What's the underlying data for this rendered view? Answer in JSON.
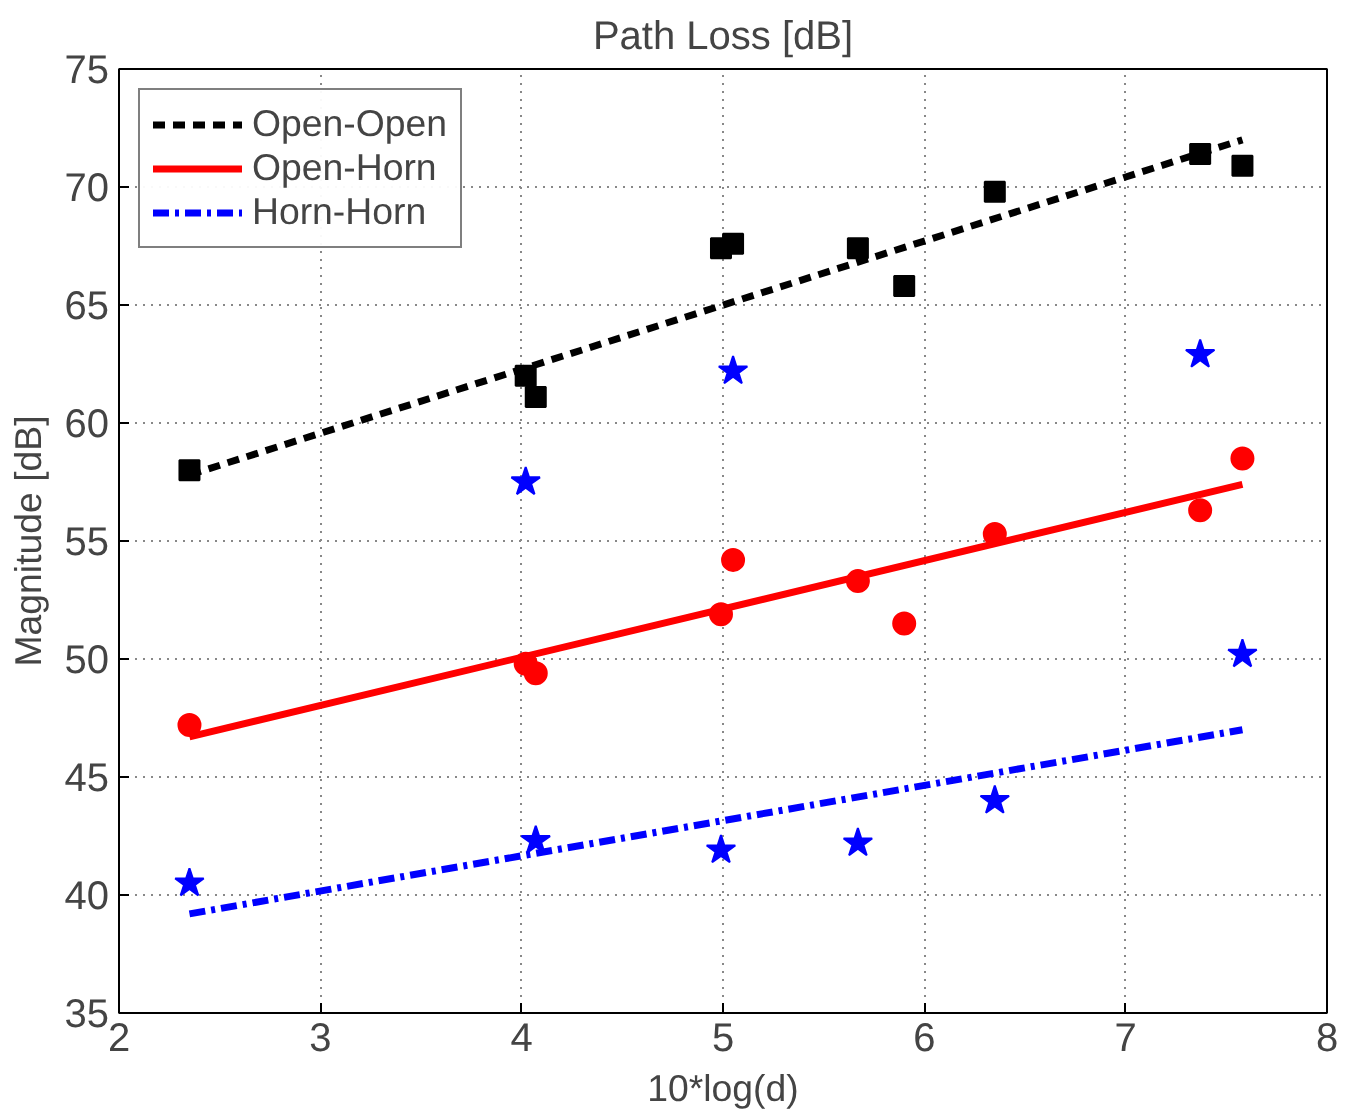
{
  "chart_data": {
    "type": "scatter",
    "title": "Path Loss [dB]",
    "xlabel": "10*log(d)",
    "ylabel": "Magnitude [dB]",
    "xlim": [
      2,
      8
    ],
    "ylim": [
      35,
      75
    ],
    "xticks": [
      2,
      3,
      4,
      5,
      6,
      7,
      8
    ],
    "yticks": [
      35,
      40,
      45,
      50,
      55,
      60,
      65,
      70,
      75
    ],
    "grid": true,
    "legend": "top left",
    "series": [
      {
        "type": "line",
        "name": "Open-Open",
        "color": "#000000",
        "line_style": "dashed",
        "marker": "none",
        "x": [
          2.35,
          7.58
        ],
        "values": [
          57.8,
          72.0
        ]
      },
      {
        "type": "line",
        "name": "Open-Horn",
        "color": "#ff0000",
        "line_style": "solid",
        "marker": "none",
        "x": [
          2.35,
          7.58
        ],
        "values": [
          46.7,
          57.4
        ]
      },
      {
        "type": "line",
        "name": "Horn-Horn",
        "color": "#0000ff",
        "line_style": "dashdot",
        "marker": "none",
        "x": [
          2.35,
          7.58
        ],
        "values": [
          39.2,
          47.0
        ]
      },
      {
        "color": "#000000",
        "marker": "square",
        "x": [
          2.35,
          4.02,
          4.07,
          4.99,
          5.05,
          5.67,
          5.9,
          6.35,
          7.37,
          7.58
        ],
        "values": [
          58.0,
          62.0,
          61.1,
          67.4,
          67.6,
          67.4,
          65.8,
          69.8,
          71.4,
          70.9
        ]
      },
      {
        "color": "#ff0000",
        "marker": "circle",
        "x": [
          2.35,
          4.02,
          4.07,
          4.99,
          5.05,
          5.67,
          5.9,
          6.35,
          7.37,
          7.58
        ],
        "values": [
          47.2,
          49.8,
          49.4,
          51.9,
          54.2,
          53.3,
          51.5,
          55.3,
          56.3,
          58.5
        ]
      },
      {
        "color": "#0000ff",
        "marker": "star",
        "x": [
          2.35,
          4.02,
          4.07,
          4.99,
          5.05,
          5.67,
          6.35,
          7.37,
          7.58
        ],
        "values": [
          40.5,
          57.5,
          42.3,
          41.9,
          62.2,
          42.2,
          44.0,
          62.9,
          50.2
        ]
      }
    ]
  }
}
